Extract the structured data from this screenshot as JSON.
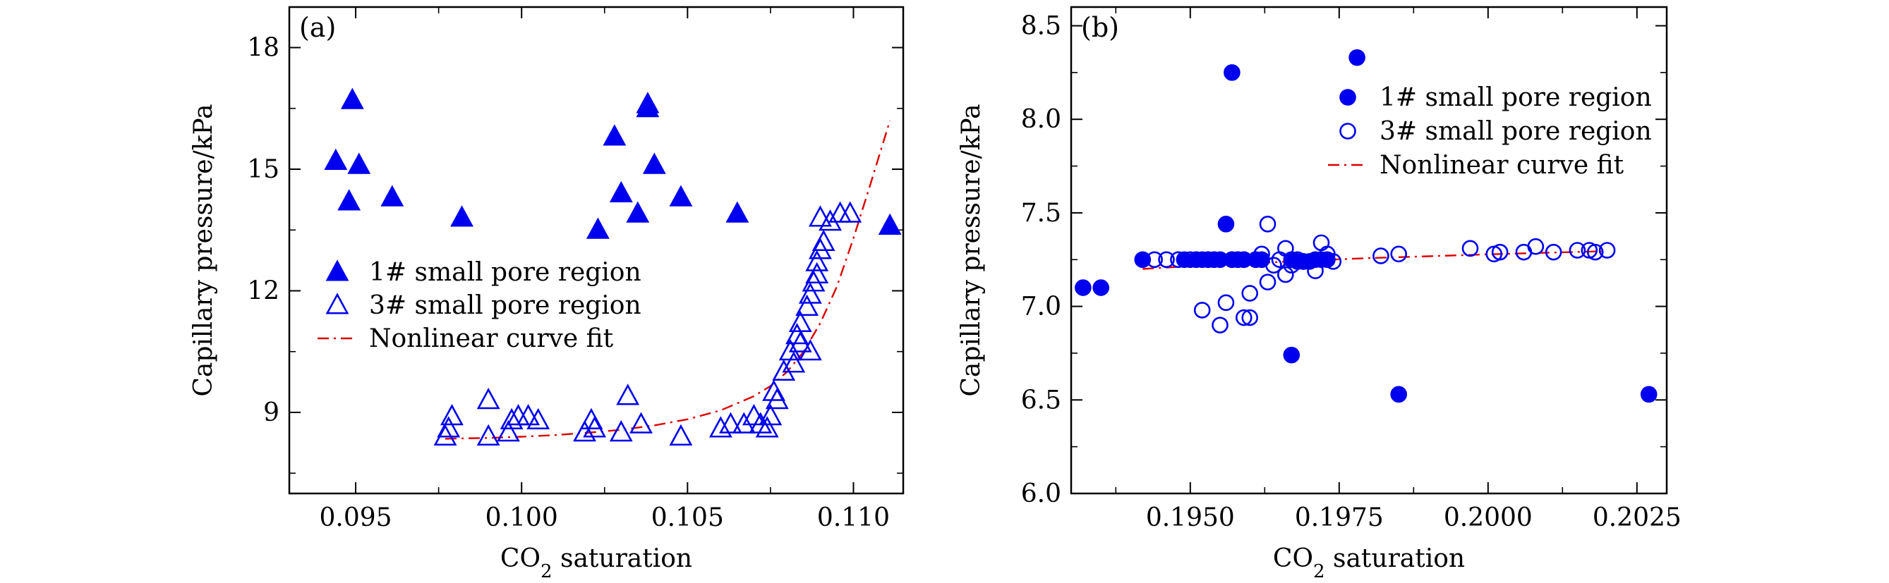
{
  "chart_data": [
    {
      "type": "scatter",
      "panel_label": "(a)",
      "xlabel": "CO",
      "xlabel_sub": "2",
      "xlabel_rest": " saturation",
      "ylabel": "Capillary pressure/kPa",
      "xlim": [
        0.093,
        0.1115
      ],
      "ylim": [
        7.0,
        19.0
      ],
      "xticks": [
        0.095,
        0.1,
        0.105,
        0.11
      ],
      "xtick_labels": [
        "0.095",
        "0.100",
        "0.105",
        "0.110"
      ],
      "yticks": [
        9,
        12,
        15,
        18
      ],
      "ytick_labels": [
        "9",
        "12",
        "15",
        "18"
      ],
      "legend_position": "center-left",
      "series": [
        {
          "name": "1# small pore region",
          "marker": "triangle-filled",
          "color": "#0000ee",
          "points": [
            [
              0.0944,
              15.2
            ],
            [
              0.0949,
              16.7
            ],
            [
              0.0948,
              14.2
            ],
            [
              0.0951,
              15.1
            ],
            [
              0.0961,
              14.3
            ],
            [
              0.0982,
              13.8
            ],
            [
              0.1023,
              13.5
            ],
            [
              0.1028,
              15.8
            ],
            [
              0.103,
              14.4
            ],
            [
              0.1035,
              13.9
            ],
            [
              0.1038,
              16.6
            ],
            [
              0.1038,
              16.5
            ],
            [
              0.104,
              15.1
            ],
            [
              0.1048,
              14.3
            ],
            [
              0.1065,
              13.9
            ],
            [
              0.1111,
              13.6
            ]
          ]
        },
        {
          "name": "3# small pore region",
          "marker": "triangle-open",
          "color": "#0000ee",
          "points": [
            [
              0.0977,
              8.4
            ],
            [
              0.0978,
              8.6
            ],
            [
              0.0979,
              8.9
            ],
            [
              0.099,
              8.4
            ],
            [
              0.099,
              9.3
            ],
            [
              0.0996,
              8.5
            ],
            [
              0.0997,
              8.8
            ],
            [
              0.0999,
              8.9
            ],
            [
              0.1002,
              8.9
            ],
            [
              0.1005,
              8.8
            ],
            [
              0.1019,
              8.5
            ],
            [
              0.1021,
              8.8
            ],
            [
              0.1022,
              8.6
            ],
            [
              0.103,
              8.5
            ],
            [
              0.1032,
              9.4
            ],
            [
              0.1036,
              8.7
            ],
            [
              0.1048,
              8.4
            ],
            [
              0.106,
              8.6
            ],
            [
              0.1063,
              8.7
            ],
            [
              0.1067,
              8.7
            ],
            [
              0.107,
              8.9
            ],
            [
              0.1072,
              8.7
            ],
            [
              0.1074,
              8.6
            ],
            [
              0.1075,
              8.9
            ],
            [
              0.1076,
              9.5
            ],
            [
              0.1077,
              9.3
            ],
            [
              0.1079,
              10.0
            ],
            [
              0.1081,
              10.5
            ],
            [
              0.1082,
              10.2
            ],
            [
              0.1083,
              10.9
            ],
            [
              0.1084,
              11.2
            ],
            [
              0.1084,
              10.7
            ],
            [
              0.1086,
              11.6
            ],
            [
              0.1087,
              10.5
            ],
            [
              0.1087,
              11.9
            ],
            [
              0.1088,
              12.2
            ],
            [
              0.1089,
              12.4
            ],
            [
              0.1089,
              12.7
            ],
            [
              0.109,
              13.0
            ],
            [
              0.1091,
              13.2
            ],
            [
              0.109,
              13.8
            ],
            [
              0.1093,
              13.7
            ],
            [
              0.1096,
              13.9
            ],
            [
              0.1099,
              13.9
            ]
          ]
        }
      ],
      "fit": {
        "name": "Nonlinear curve fit",
        "style": "dash-dot",
        "color": "#dd0000",
        "x": [
          0.0977,
          0.099,
          0.1,
          0.101,
          0.102,
          0.103,
          0.104,
          0.105,
          0.106,
          0.107,
          0.1075,
          0.108,
          0.1085,
          0.109,
          0.1095,
          0.11,
          0.1105,
          0.1111
        ],
        "y": [
          8.35,
          8.37,
          8.4,
          8.44,
          8.5,
          8.57,
          8.68,
          8.83,
          9.05,
          9.4,
          9.65,
          10.0,
          10.5,
          11.2,
          12.1,
          13.3,
          14.6,
          16.2
        ]
      }
    },
    {
      "type": "scatter",
      "panel_label": "(b)",
      "xlabel": "CO",
      "xlabel_sub": "2",
      "xlabel_rest": " saturation",
      "ylabel": "Capillary pressure/kPa",
      "xlim": [
        0.193,
        0.203
      ],
      "ylim": [
        6.0,
        8.6
      ],
      "xticks": [
        0.195,
        0.1975,
        0.2,
        0.2025
      ],
      "xtick_labels": [
        "0.1950",
        "0.1975",
        "0.2000",
        "0.2025"
      ],
      "yticks": [
        6.0,
        6.5,
        7.0,
        7.5,
        8.0,
        8.5
      ],
      "ytick_labels": [
        "6.0",
        "6.5",
        "7.0",
        "7.5",
        "8.0",
        "8.5"
      ],
      "legend_position": "top-right",
      "series": [
        {
          "name": "1# small pore region",
          "marker": "circle-filled",
          "color": "#0000ee",
          "points": [
            [
              0.1932,
              7.1
            ],
            [
              0.1935,
              7.1
            ],
            [
              0.1942,
              7.25
            ],
            [
              0.1949,
              7.25
            ],
            [
              0.1951,
              7.25
            ],
            [
              0.1952,
              7.25
            ],
            [
              0.1953,
              7.25
            ],
            [
              0.1954,
              7.25
            ],
            [
              0.1955,
              7.25
            ],
            [
              0.1956,
              7.44
            ],
            [
              0.1957,
              8.25
            ],
            [
              0.1957,
              7.25
            ],
            [
              0.1958,
              7.25
            ],
            [
              0.1959,
              7.25
            ],
            [
              0.1961,
              7.25
            ],
            [
              0.1962,
              7.25
            ],
            [
              0.1967,
              6.74
            ],
            [
              0.1967,
              7.25
            ],
            [
              0.1968,
              7.24
            ],
            [
              0.1969,
              7.24
            ],
            [
              0.197,
              7.24
            ],
            [
              0.1971,
              7.25
            ],
            [
              0.1972,
              7.25
            ],
            [
              0.1973,
              7.25
            ],
            [
              0.1978,
              8.33
            ],
            [
              0.1985,
              6.53
            ],
            [
              0.2027,
              6.53
            ]
          ]
        },
        {
          "name": "3# small pore region",
          "marker": "circle-open",
          "color": "#0000ee",
          "points": [
            [
              0.1944,
              7.25
            ],
            [
              0.1946,
              7.25
            ],
            [
              0.1948,
              7.25
            ],
            [
              0.195,
              7.25
            ],
            [
              0.1951,
              7.25
            ],
            [
              0.1952,
              6.98
            ],
            [
              0.1953,
              7.25
            ],
            [
              0.1954,
              7.25
            ],
            [
              0.1955,
              6.9
            ],
            [
              0.1956,
              7.02
            ],
            [
              0.1957,
              7.25
            ],
            [
              0.1958,
              7.25
            ],
            [
              0.1959,
              6.94
            ],
            [
              0.1959,
              7.25
            ],
            [
              0.196,
              7.07
            ],
            [
              0.196,
              6.94
            ],
            [
              0.1961,
              7.25
            ],
            [
              0.1962,
              7.28
            ],
            [
              0.1963,
              7.13
            ],
            [
              0.1963,
              7.44
            ],
            [
              0.1964,
              7.22
            ],
            [
              0.1965,
              7.25
            ],
            [
              0.1966,
              7.31
            ],
            [
              0.1966,
              7.17
            ],
            [
              0.1967,
              7.22
            ],
            [
              0.1968,
              7.25
            ],
            [
              0.1969,
              7.24
            ],
            [
              0.1971,
              7.19
            ],
            [
              0.1972,
              7.34
            ],
            [
              0.1973,
              7.28
            ],
            [
              0.1974,
              7.24
            ],
            [
              0.1982,
              7.27
            ],
            [
              0.1985,
              7.28
            ],
            [
              0.1997,
              7.31
            ],
            [
              0.2001,
              7.28
            ],
            [
              0.2002,
              7.29
            ],
            [
              0.2006,
              7.29
            ],
            [
              0.2008,
              7.32
            ],
            [
              0.2011,
              7.29
            ],
            [
              0.2015,
              7.3
            ],
            [
              0.2017,
              7.3
            ],
            [
              0.2018,
              7.29
            ],
            [
              0.202,
              7.3
            ]
          ]
        }
      ],
      "fit": {
        "name": "Nonlinear curve fit",
        "style": "dash-dot",
        "color": "#dd0000",
        "x": [
          0.1942,
          0.195,
          0.196,
          0.197,
          0.198,
          0.199,
          0.2,
          0.201,
          0.202
        ],
        "y": [
          7.2,
          7.215,
          7.23,
          7.245,
          7.258,
          7.268,
          7.278,
          7.287,
          7.295
        ]
      }
    }
  ]
}
